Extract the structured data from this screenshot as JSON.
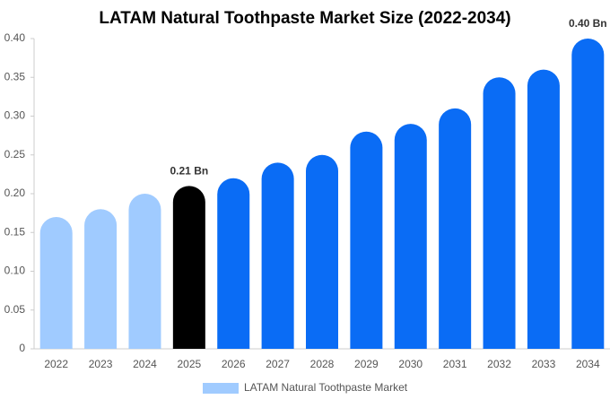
{
  "chart_data": {
    "type": "bar",
    "title": "LATAM Natural Toothpaste Market Size (2022-2034)",
    "categories": [
      "2022",
      "2023",
      "2024",
      "2025",
      "2026",
      "2027",
      "2028",
      "2029",
      "2030",
      "2031",
      "2032",
      "2033",
      "2034"
    ],
    "series": [
      {
        "name": "LATAM Natural Toothpaste Market",
        "color": "#a0cbff",
        "values": [
          0.17,
          0.18,
          0.2,
          0.21,
          0.22,
          0.24,
          0.25,
          0.28,
          0.29,
          0.31,
          0.35,
          0.36,
          0.4
        ],
        "value_labels": [
          null,
          null,
          null,
          "0.21 Bn",
          null,
          null,
          null,
          null,
          null,
          null,
          null,
          null,
          "0.40 Bn"
        ],
        "colors": [
          "#a0cbff",
          "#a0cbff",
          "#a0cbff",
          "#000000",
          "#0a6cf5",
          "#0a6cf5",
          "#0a6cf5",
          "#0a6cf5",
          "#0a6cf5",
          "#0a6cf5",
          "#0a6cf5",
          "#0a6cf5",
          "#0a6cf5"
        ]
      }
    ],
    "ylim": [
      0,
      0.4
    ],
    "yticks": [
      0,
      0.05,
      {
        "value": 0.1,
        "label": "0.10"
      },
      0.15,
      {
        "value": 0.2,
        "label": "0.20"
      },
      0.25,
      {
        "value": 0.3,
        "label": "0.30"
      },
      0.35,
      {
        "value": 0.4,
        "label": "0.40"
      }
    ],
    "grid": false
  }
}
